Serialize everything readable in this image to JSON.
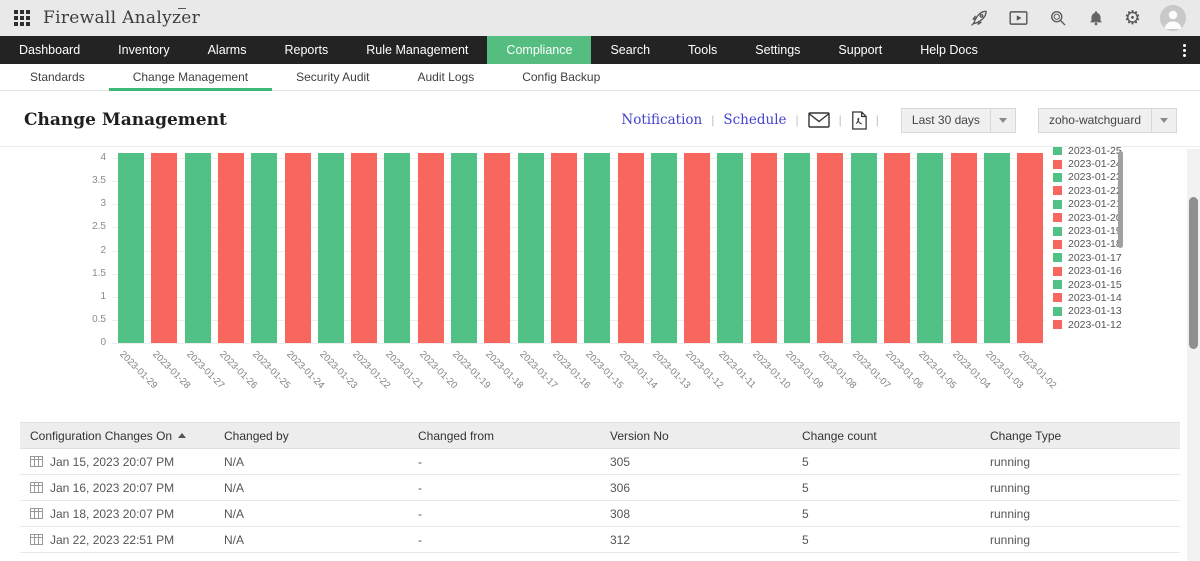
{
  "topbar": {
    "app_title": "Firewall Analyzer",
    "icons": [
      "apps-grid-icon",
      "rocket-icon",
      "presentation-play-icon",
      "search-icon",
      "bell-icon",
      "gear-icon",
      "user-avatar"
    ]
  },
  "nav": {
    "accent_color": "#54bd7f",
    "items": [
      {
        "label": "Dashboard",
        "active": false
      },
      {
        "label": "Inventory",
        "active": false
      },
      {
        "label": "Alarms",
        "active": false
      },
      {
        "label": "Reports",
        "active": false
      },
      {
        "label": "Rule Management",
        "active": false
      },
      {
        "label": "Compliance",
        "active": true
      },
      {
        "label": "Search",
        "active": false
      },
      {
        "label": "Tools",
        "active": false
      },
      {
        "label": "Settings",
        "active": false
      },
      {
        "label": "Support",
        "active": false
      },
      {
        "label": "Help Docs",
        "active": false
      }
    ]
  },
  "subnav": {
    "active_underline_color": "#3eb977",
    "items": [
      {
        "label": "Standards",
        "active": false
      },
      {
        "label": "Change Management",
        "active": true
      },
      {
        "label": "Security Audit",
        "active": false
      },
      {
        "label": "Audit Logs",
        "active": false
      },
      {
        "label": "Config Backup",
        "active": false
      }
    ]
  },
  "page": {
    "title": "Change Management",
    "links": {
      "notification": "Notification",
      "schedule": "Schedule"
    },
    "filters": {
      "period": "Last 30 days",
      "device": "zoho-watchguard"
    }
  },
  "chart_data": {
    "type": "bar",
    "title": "",
    "xlabel": "",
    "ylabel": "",
    "ylim": [
      0,
      4
    ],
    "yticks": [
      0,
      0.5,
      1,
      1.5,
      2,
      2.5,
      3,
      3.5,
      4
    ],
    "grid": true,
    "legend_position": "right",
    "bar_colors_alternate": [
      "#52c185",
      "#f8675e"
    ],
    "categories": [
      "2023-01-29",
      "2023-01-28",
      "2023-01-27",
      "2023-01-26",
      "2023-01-25",
      "2023-01-24",
      "2023-01-23",
      "2023-01-22",
      "2023-01-21",
      "2023-01-20",
      "2023-01-19",
      "2023-01-18",
      "2023-01-17",
      "2023-01-16",
      "2023-01-15",
      "2023-01-14",
      "2023-01-13",
      "2023-01-12",
      "2023-01-11",
      "2023-01-10",
      "2023-01-09",
      "2023-01-08",
      "2023-01-07",
      "2023-01-06",
      "2023-01-05",
      "2023-01-04",
      "2023-01-03",
      "2023-01-02"
    ],
    "values": [
      4,
      4,
      4,
      4,
      4,
      4,
      4,
      4,
      4,
      4,
      4,
      4,
      4,
      4,
      4,
      4,
      4,
      4,
      4,
      4,
      4,
      4,
      4,
      4,
      4,
      4,
      4,
      4
    ],
    "legend": [
      {
        "label": "2023-01-25",
        "color": "#52c185"
      },
      {
        "label": "2023-01-24",
        "color": "#f8675e"
      },
      {
        "label": "2023-01-23",
        "color": "#52c185"
      },
      {
        "label": "2023-01-22",
        "color": "#f8675e"
      },
      {
        "label": "2023-01-21",
        "color": "#52c185"
      },
      {
        "label": "2023-01-20",
        "color": "#f8675e"
      },
      {
        "label": "2023-01-19",
        "color": "#52c185"
      },
      {
        "label": "2023-01-18",
        "color": "#f8675e"
      },
      {
        "label": "2023-01-17",
        "color": "#52c185"
      },
      {
        "label": "2023-01-16",
        "color": "#f8675e"
      },
      {
        "label": "2023-01-15",
        "color": "#52c185"
      },
      {
        "label": "2023-01-14",
        "color": "#f8675e"
      },
      {
        "label": "2023-01-13",
        "color": "#52c185"
      },
      {
        "label": "2023-01-12",
        "color": "#f8675e"
      }
    ]
  },
  "table": {
    "columns": [
      "Configuration Changes On",
      "Changed by",
      "Changed from",
      "Version No",
      "Change count",
      "Change Type"
    ],
    "sorted_column_index": 0,
    "sort_direction": "asc",
    "rows": [
      [
        "Jan 15, 2023 20:07 PM",
        "N/A",
        "-",
        "305",
        "5",
        "running"
      ],
      [
        "Jan 16, 2023 20:07 PM",
        "N/A",
        "-",
        "306",
        "5",
        "running"
      ],
      [
        "Jan 18, 2023 20:07 PM",
        "N/A",
        "-",
        "308",
        "5",
        "running"
      ],
      [
        "Jan 22, 2023 22:51 PM",
        "N/A",
        "-",
        "312",
        "5",
        "running"
      ]
    ]
  }
}
